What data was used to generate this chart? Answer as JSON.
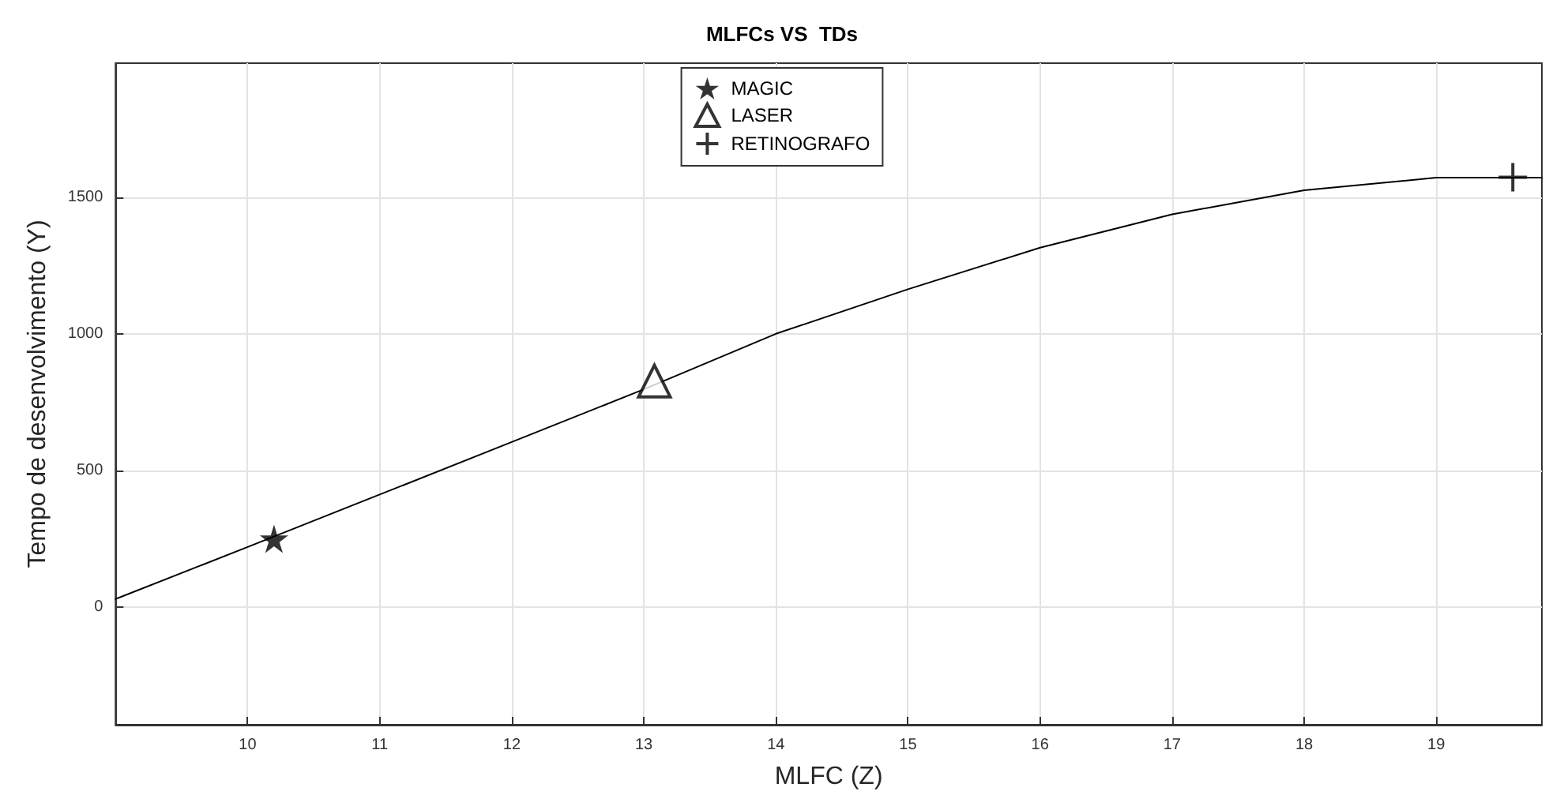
{
  "chart_data": {
    "type": "line",
    "title": "MLFCs VS  TDs",
    "xlabel": "MLFC (Z)",
    "ylabel": "Tempo de desenvolvimento (Y)",
    "xlim": [
      9,
      19.8
    ],
    "xticks": [
      10,
      11,
      12,
      13,
      14,
      15,
      16,
      17,
      18,
      19
    ],
    "ylim": [
      -430,
      1990
    ],
    "yticks": [
      0,
      500,
      1000,
      1500
    ],
    "grid": true,
    "legend": "top",
    "line_style": "solid",
    "series": [
      {
        "type": "line",
        "color": "#000000",
        "marker": "none",
        "x": [
          9,
          10,
          11,
          12,
          13,
          14,
          15,
          16,
          17,
          18,
          19,
          19.8
        ],
        "values": [
          30,
          220,
          412,
          604,
          797,
          1000,
          1163,
          1315,
          1437,
          1525,
          1571,
          1571
        ]
      },
      {
        "type": "scatter",
        "name": "MAGIC",
        "color": "#000000",
        "marker": "star",
        "x": [
          10.2
        ],
        "values": [
          250
        ]
      },
      {
        "type": "scatter",
        "name": "LASER",
        "color": "#000000",
        "marker": "triangle",
        "x": [
          13.08
        ],
        "values": [
          827
        ]
      },
      {
        "type": "scatter",
        "name": "RETINOGRAFO",
        "color": "#000000",
        "marker": "cross",
        "x": [
          19.58
        ],
        "values": [
          1573
        ]
      }
    ]
  }
}
